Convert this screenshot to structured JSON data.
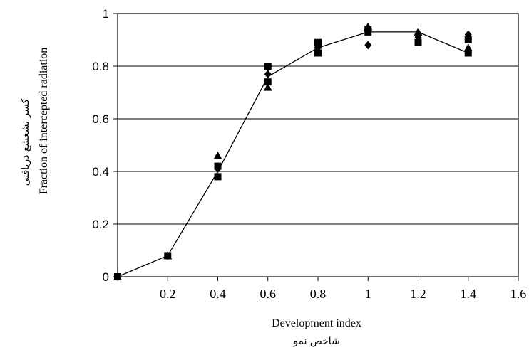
{
  "chart_data": {
    "type": "scatter",
    "xlabel": "Development index",
    "xlabel_secondary": "شاخص نمو",
    "ylabel": "Fraction of intercepted radiation",
    "ylabel_secondary": "کسر تشعشع دریافتی",
    "xlim": [
      0,
      1.6
    ],
    "ylim": [
      0,
      1
    ],
    "x_ticks": [
      {
        "value": 0.2,
        "label": "0.2"
      },
      {
        "value": 0.4,
        "label": "0.4"
      },
      {
        "value": 0.6,
        "label": "0.6"
      },
      {
        "value": 0.8,
        "label": "0.8"
      },
      {
        "value": 1.0,
        "label": "1"
      },
      {
        "value": 1.2,
        "label": "1.2"
      },
      {
        "value": 1.4,
        "label": "1.4"
      },
      {
        "value": 1.6,
        "label": "1.6"
      }
    ],
    "y_ticks": [
      {
        "value": 0,
        "label": "0"
      },
      {
        "value": 0.2,
        "label": "0.2"
      },
      {
        "value": 0.4,
        "label": "0.4"
      },
      {
        "value": 0.6,
        "label": "0.6"
      },
      {
        "value": 0.8,
        "label": "0.8"
      },
      {
        "value": 1.0,
        "label": "1"
      }
    ],
    "grid": "horizontal",
    "series": [
      {
        "marker": "diamond",
        "x": [
          0,
          0.2,
          0.4,
          0.6,
          0.8,
          1.0,
          1.2,
          1.4
        ],
        "y": [
          0,
          0.08,
          0.41,
          0.77,
          0.87,
          0.88,
          0.91,
          0.92
        ]
      },
      {
        "marker": "square",
        "x": [
          0,
          0.2,
          0.4,
          0.4,
          0.6,
          0.6,
          0.8,
          0.8,
          1.0,
          1.0,
          1.2,
          1.4,
          1.4
        ],
        "y": [
          0,
          0.08,
          0.42,
          0.38,
          0.8,
          0.74,
          0.89,
          0.85,
          0.94,
          0.93,
          0.89,
          0.9,
          0.85
        ]
      },
      {
        "marker": "triangle",
        "x": [
          0,
          0.2,
          0.4,
          0.6,
          0.8,
          1.0,
          1.2,
          1.4
        ],
        "y": [
          0,
          0.08,
          0.46,
          0.72,
          0.88,
          0.95,
          0.93,
          0.87
        ]
      }
    ],
    "fit_line": {
      "x": [
        0,
        0.2,
        0.4,
        0.6,
        0.8,
        1.0,
        1.2,
        1.4
      ],
      "y": [
        0,
        0.08,
        0.4,
        0.76,
        0.87,
        0.93,
        0.93,
        0.85
      ]
    },
    "colors": {
      "marker": "#000000",
      "line": "#000000",
      "grid": "#000000"
    }
  }
}
